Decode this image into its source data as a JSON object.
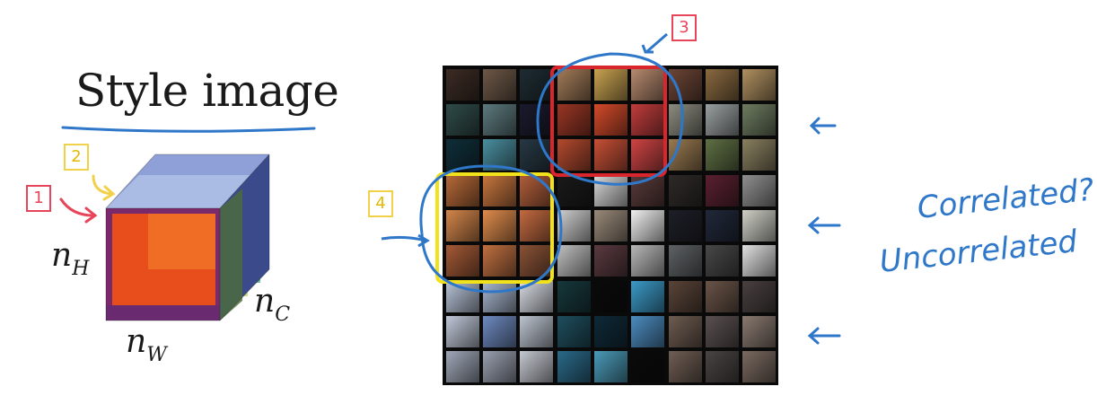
{
  "title": "Style image",
  "labels": {
    "l1": "1",
    "l2": "2",
    "l3": "3",
    "l4": "4"
  },
  "axes": {
    "nh_base": "n",
    "nh_sub": "H",
    "nw_base": "n",
    "nw_sub": "W",
    "nc_base": "n",
    "nc_sub": "C"
  },
  "notes": {
    "line1": "Correlated?",
    "line2": "Uncorrelated"
  },
  "colors": {
    "label_red": "#e8455a",
    "label_yellow": "#f2d14a",
    "ink_blue": "#2f77c9",
    "highlight_red": "#d9262c",
    "highlight_yellow": "#f2e21c"
  },
  "icons": {
    "arrows": [
      "left-arrow-icon",
      "left-arrow-icon",
      "left-arrow-icon"
    ]
  }
}
